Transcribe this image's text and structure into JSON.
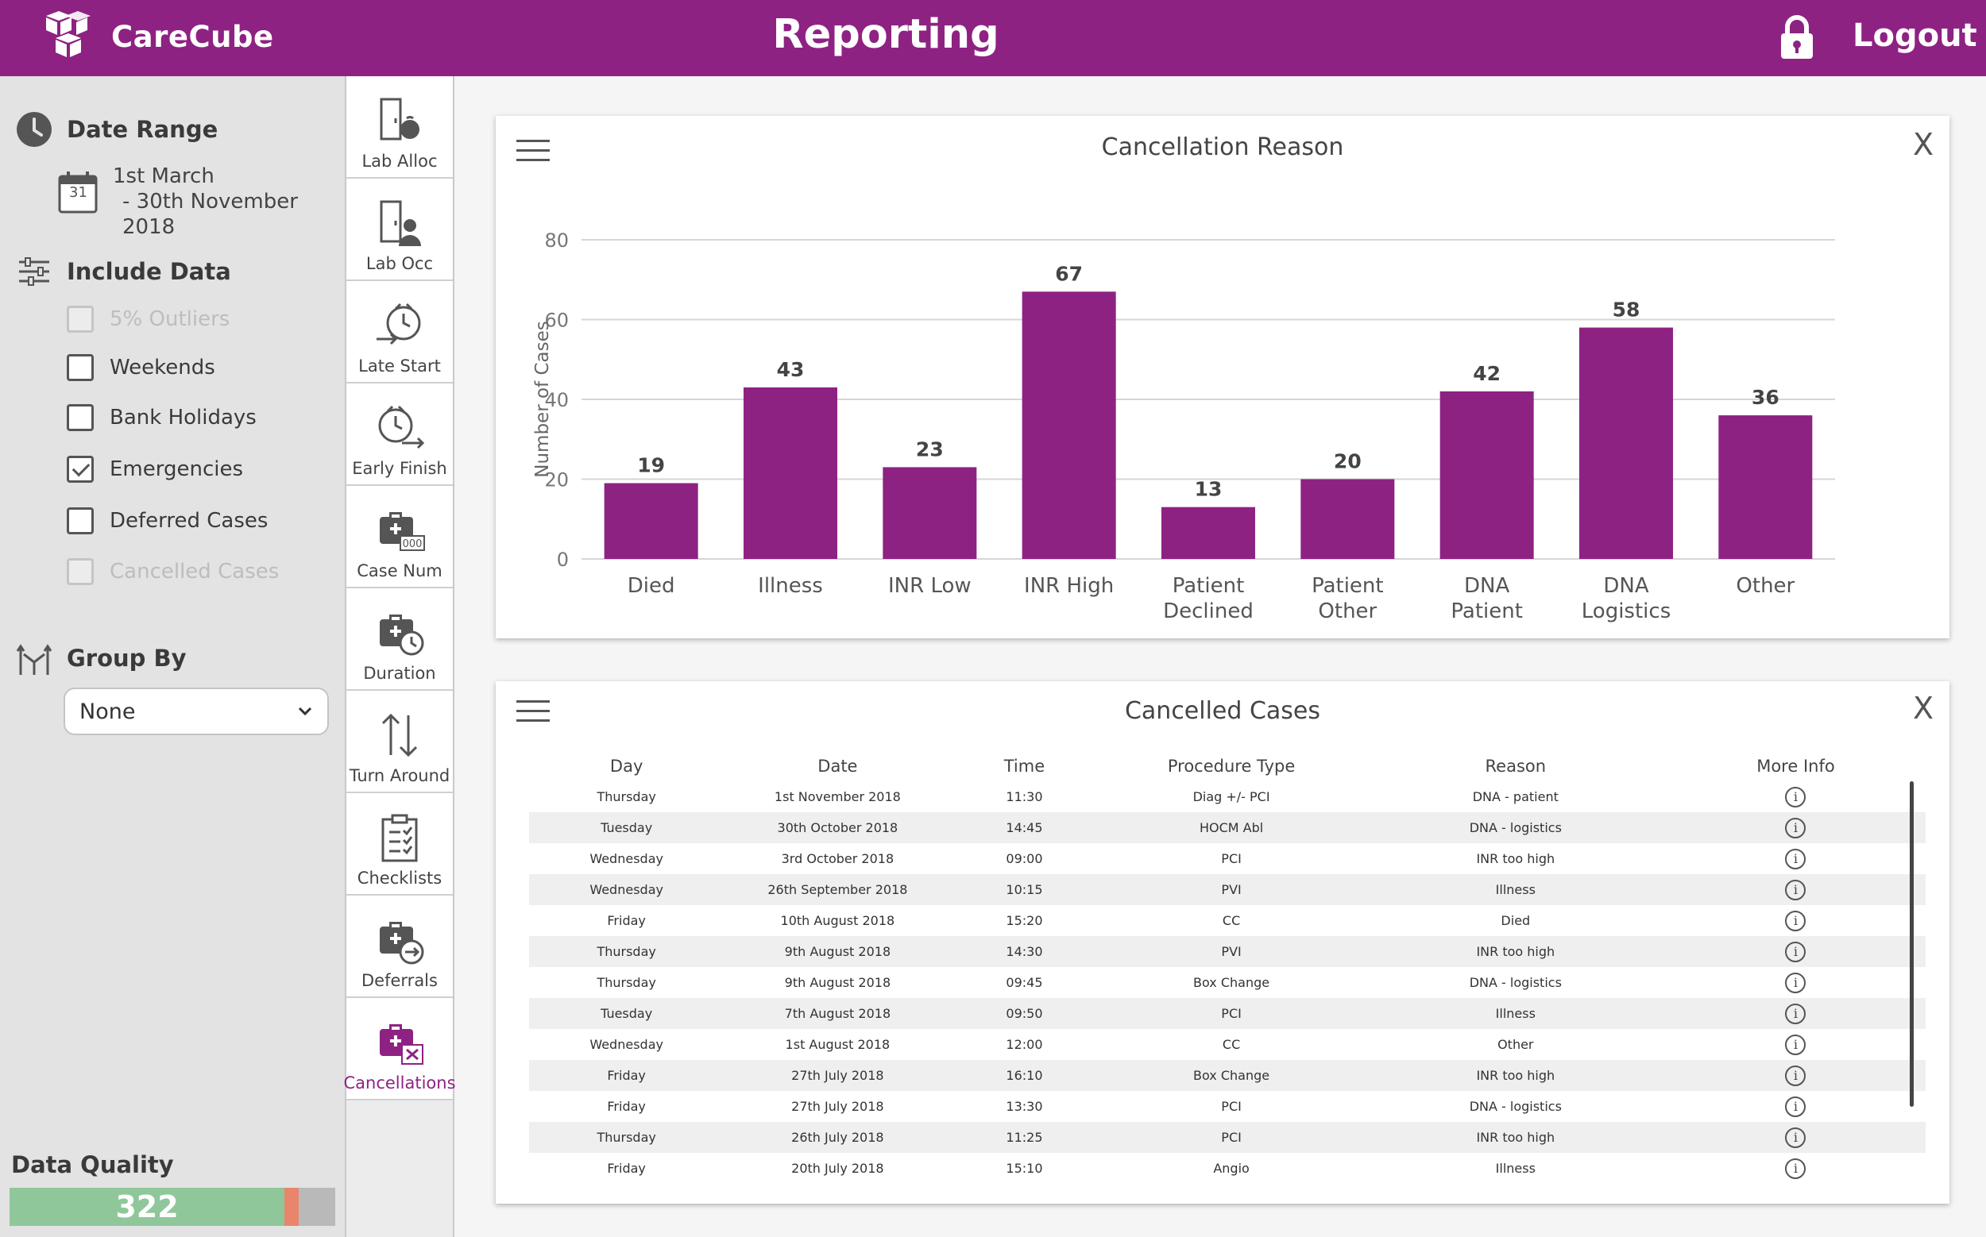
{
  "header": {
    "brand": "CareCube",
    "title": "Reporting",
    "logout_label": "Logout"
  },
  "sidebar": {
    "date_range": {
      "heading": "Date Range",
      "line1": "1st March",
      "line2": "- 30th November 2018",
      "calendar_day": "31"
    },
    "include_data": {
      "heading": "Include Data",
      "options": [
        {
          "label": "5% Outliers",
          "checked": false,
          "disabled": true
        },
        {
          "label": "Weekends",
          "checked": false,
          "disabled": false
        },
        {
          "label": "Bank Holidays",
          "checked": false,
          "disabled": false
        },
        {
          "label": "Emergencies",
          "checked": true,
          "disabled": false
        },
        {
          "label": "Deferred Cases",
          "checked": false,
          "disabled": false
        },
        {
          "label": "Cancelled Cases",
          "checked": false,
          "disabled": true
        }
      ]
    },
    "group_by": {
      "heading": "Group By",
      "selected": "None"
    },
    "data_quality": {
      "heading": "Data Quality",
      "value": "322"
    }
  },
  "nav": [
    {
      "label": "Lab Alloc",
      "icon": "lab-alloc-icon"
    },
    {
      "label": "Lab Occ",
      "icon": "lab-occ-icon"
    },
    {
      "label": "Late Start",
      "icon": "late-start-icon"
    },
    {
      "label": "Early Finish",
      "icon": "early-finish-icon"
    },
    {
      "label": "Case Num",
      "icon": "case-num-icon"
    },
    {
      "label": "Duration",
      "icon": "duration-icon"
    },
    {
      "label": "Turn Around",
      "icon": "turn-around-icon"
    },
    {
      "label": "Checklists",
      "icon": "checklists-icon"
    },
    {
      "label": "Deferrals",
      "icon": "deferrals-icon"
    },
    {
      "label": "Cancellations",
      "icon": "cancellations-icon",
      "active": true
    }
  ],
  "chart_panel": {
    "close": "X"
  },
  "chart_data": {
    "type": "bar",
    "title": "Cancellation Reason",
    "xlabel": "",
    "ylabel": "Number of Cases",
    "categories": [
      [
        "Died"
      ],
      [
        "Illness"
      ],
      [
        "INR Low"
      ],
      [
        "INR High"
      ],
      [
        "Patient",
        "Declined"
      ],
      [
        "Patient",
        "Other"
      ],
      [
        "DNA",
        "Patient"
      ],
      [
        "DNA",
        "Logistics"
      ],
      [
        "Other"
      ]
    ],
    "values": [
      19,
      43,
      23,
      67,
      13,
      20,
      42,
      58,
      36
    ],
    "ylim": [
      0,
      80
    ],
    "yticks": [
      0,
      20,
      40,
      60,
      80
    ],
    "grid": true,
    "bar_color": "#8e2283"
  },
  "table_panel": {
    "title": "Cancelled Cases",
    "close": "X",
    "columns": [
      "Day",
      "Date",
      "Time",
      "Procedure Type",
      "Reason",
      "More Info"
    ],
    "rows": [
      [
        "Thursday",
        "1st November 2018",
        "11:30",
        "Diag +/- PCI",
        "DNA - patient"
      ],
      [
        "Tuesday",
        "30th October 2018",
        "14:45",
        "HOCM Abl",
        "DNA - logistics"
      ],
      [
        "Wednesday",
        "3rd October 2018",
        "09:00",
        "PCI",
        "INR too high"
      ],
      [
        "Wednesday",
        "26th September 2018",
        "10:15",
        "PVI",
        "Illness"
      ],
      [
        "Friday",
        "10th August 2018",
        "15:20",
        "CC",
        "Died"
      ],
      [
        "Thursday",
        "9th August 2018",
        "14:30",
        "PVI",
        "INR too high"
      ],
      [
        "Thursday",
        "9th August 2018",
        "09:45",
        "Box Change",
        "DNA - logistics"
      ],
      [
        "Tuesday",
        "7th August 2018",
        "09:50",
        "PCI",
        "Illness"
      ],
      [
        "Wednesday",
        "1st August 2018",
        "12:00",
        "CC",
        "Other"
      ],
      [
        "Friday",
        "27th July 2018",
        "16:10",
        "Box Change",
        "INR too high"
      ],
      [
        "Friday",
        "27th July 2018",
        "13:30",
        "PCI",
        "DNA - logistics"
      ],
      [
        "Thursday",
        "26th July 2018",
        "11:25",
        "PCI",
        "INR too high"
      ],
      [
        "Friday",
        "20th July 2018",
        "15:10",
        "Angio",
        "Illness"
      ]
    ],
    "info_glyph": "i"
  },
  "colors": {
    "brand": "#8e2283",
    "dq_green": "#8fc79a",
    "dq_red": "#e9856a"
  }
}
